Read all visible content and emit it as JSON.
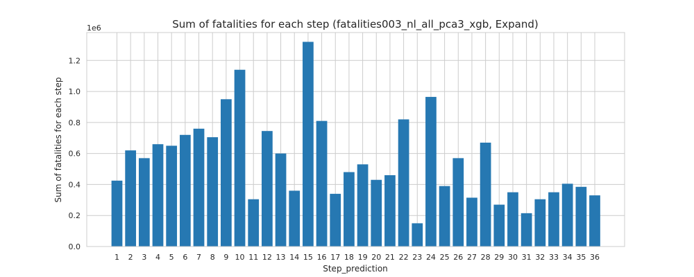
{
  "chart_data": {
    "type": "bar",
    "title": "Sum of fatalities for each step (fatalities003_nl_all_pca3_xgb, Expand)",
    "xlabel": "Step_prediction",
    "ylabel": "Sum of fatalities for each step",
    "y_offset_label": "1e6",
    "categories": [
      "1",
      "2",
      "3",
      "4",
      "5",
      "6",
      "7",
      "8",
      "9",
      "10",
      "11",
      "12",
      "13",
      "14",
      "15",
      "16",
      "17",
      "18",
      "19",
      "20",
      "21",
      "22",
      "23",
      "24",
      "25",
      "26",
      "27",
      "28",
      "29",
      "30",
      "31",
      "32",
      "33",
      "34",
      "35",
      "36"
    ],
    "values": [
      425000,
      620000,
      570000,
      660000,
      650000,
      720000,
      760000,
      705000,
      950000,
      1140000,
      305000,
      745000,
      600000,
      360000,
      1320000,
      810000,
      340000,
      480000,
      530000,
      430000,
      460000,
      820000,
      150000,
      965000,
      390000,
      570000,
      315000,
      670000,
      270000,
      350000,
      215000,
      305000,
      350000,
      405000,
      385000,
      330000
    ],
    "ylim": [
      0,
      1380000
    ],
    "yticks": [
      0,
      200000,
      400000,
      600000,
      800000,
      1000000,
      1200000
    ],
    "ytick_labels": [
      "0.0",
      "0.2",
      "0.4",
      "0.6",
      "0.8",
      "1.0",
      "1.2"
    ],
    "grid": true,
    "colors": {
      "bar": "#2678b2",
      "grid": "#cccccc",
      "text": "#262626"
    }
  }
}
